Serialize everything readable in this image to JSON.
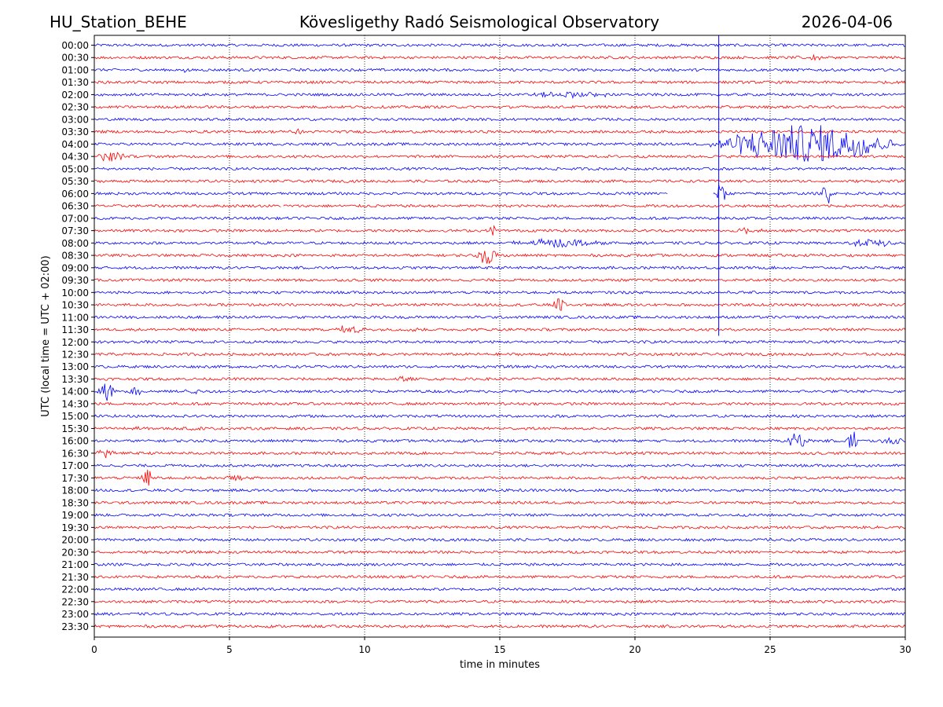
{
  "header": {
    "station": "HU_Station_BEHE",
    "observatory": "Kövesligethy Radó Seismological Observatory",
    "date": "2026-04-06"
  },
  "colors": {
    "trace_a": "#0000ff",
    "trace_b": "#ff0000",
    "gap_fill": "#ffffff",
    "axis": "#000000"
  },
  "chart_data": {
    "type": "line",
    "title": "Kövesligethy Radó Seismological Observatory",
    "xlabel": "time in minutes",
    "ylabel": "UTC (local time = UTC + 02:00)",
    "xlim": [
      0,
      30
    ],
    "x_ticks": [
      "0",
      "5",
      "10",
      "15",
      "20",
      "25",
      "30"
    ],
    "x_tick_values": [
      0,
      5,
      10,
      15,
      20,
      25,
      30
    ],
    "grid": "vertical dotted at 5-minute ticks",
    "row_labels": [
      "00:00",
      "00:30",
      "01:00",
      "01:30",
      "02:00",
      "02:30",
      "03:00",
      "03:30",
      "04:00",
      "04:30",
      "05:00",
      "05:30",
      "06:00",
      "06:30",
      "07:00",
      "07:30",
      "08:00",
      "08:30",
      "09:00",
      "09:30",
      "10:00",
      "10:30",
      "11:00",
      "11:30",
      "12:00",
      "12:30",
      "13:00",
      "13:30",
      "14:00",
      "14:30",
      "15:00",
      "15:30",
      "16:00",
      "16:30",
      "17:00",
      "17:30",
      "18:00",
      "18:30",
      "19:00",
      "19:30",
      "20:00",
      "20:30",
      "21:00",
      "21:30",
      "22:00",
      "22:30",
      "23:00",
      "23:30"
    ],
    "noise_level": 0.12,
    "events": [
      {
        "row": "00:30",
        "start": 26.0,
        "end": 27.2,
        "amplitude": 0.22
      },
      {
        "row": "01:00",
        "start": 3.1,
        "end": 3.6,
        "amplitude": 0.2
      },
      {
        "row": "02:00",
        "start": 15.9,
        "end": 19.5,
        "amplitude": 0.25
      },
      {
        "row": "03:30",
        "start": 6.8,
        "end": 7.9,
        "amplitude": 0.2
      },
      {
        "row": "04:00",
        "start": 22.6,
        "end": 30.0,
        "amplitude": 1.7
      },
      {
        "row": "04:30",
        "start": 0.0,
        "end": 1.3,
        "amplitude": 0.45
      },
      {
        "row": "04:30",
        "start": 16.6,
        "end": 16.8,
        "amplitude": 0.2
      },
      {
        "row": "06:00",
        "start": 23.0,
        "end": 23.4,
        "amplitude": 1.3
      },
      {
        "row": "06:00",
        "start": 26.9,
        "end": 27.3,
        "amplitude": 1.1
      },
      {
        "row": "07:30",
        "start": 14.6,
        "end": 14.9,
        "amplitude": 0.5
      },
      {
        "row": "07:30",
        "start": 23.5,
        "end": 25.0,
        "amplitude": 0.2
      },
      {
        "row": "08:00",
        "start": 15.1,
        "end": 19.0,
        "amplitude": 0.35
      },
      {
        "row": "08:00",
        "start": 27.7,
        "end": 30.0,
        "amplitude": 0.3
      },
      {
        "row": "08:30",
        "start": 14.1,
        "end": 15.0,
        "amplitude": 0.75
      },
      {
        "row": "10:30",
        "start": 16.9,
        "end": 17.5,
        "amplitude": 0.6
      },
      {
        "row": "11:30",
        "start": 8.7,
        "end": 10.2,
        "amplitude": 0.3
      },
      {
        "row": "11:30",
        "start": 11.6,
        "end": 12.1,
        "amplitude": 0.35
      },
      {
        "row": "13:30",
        "start": 11.0,
        "end": 11.8,
        "amplitude": 0.2
      },
      {
        "row": "14:00",
        "start": 0.1,
        "end": 0.8,
        "amplitude": 0.85
      },
      {
        "row": "14:00",
        "start": 1.2,
        "end": 1.9,
        "amplitude": 0.45
      },
      {
        "row": "14:00",
        "start": 3.1,
        "end": 4.1,
        "amplitude": 0.2
      },
      {
        "row": "15:30",
        "start": 1.0,
        "end": 1.9,
        "amplitude": 0.28
      },
      {
        "row": "15:30",
        "start": 3.5,
        "end": 4.0,
        "amplitude": 0.2
      },
      {
        "row": "16:00",
        "start": 25.5,
        "end": 26.5,
        "amplitude": 0.65
      },
      {
        "row": "16:00",
        "start": 27.8,
        "end": 28.3,
        "amplitude": 0.9
      },
      {
        "row": "16:00",
        "start": 29.0,
        "end": 30.0,
        "amplitude": 0.3
      },
      {
        "row": "16:30",
        "start": 0.0,
        "end": 0.9,
        "amplitude": 0.38
      },
      {
        "row": "17:30",
        "start": 1.7,
        "end": 2.3,
        "amplitude": 0.8
      },
      {
        "row": "17:30",
        "start": 4.7,
        "end": 5.6,
        "amplitude": 0.2
      }
    ],
    "spike": {
      "at_minute": 23.1,
      "from_row": "00:00",
      "to_row": "11:30"
    },
    "gaps": [
      {
        "row": "06:00",
        "start": 21.2,
        "end": 22.9
      },
      {
        "row": "06:30",
        "start": 6.9,
        "end": 7.0
      }
    ]
  }
}
